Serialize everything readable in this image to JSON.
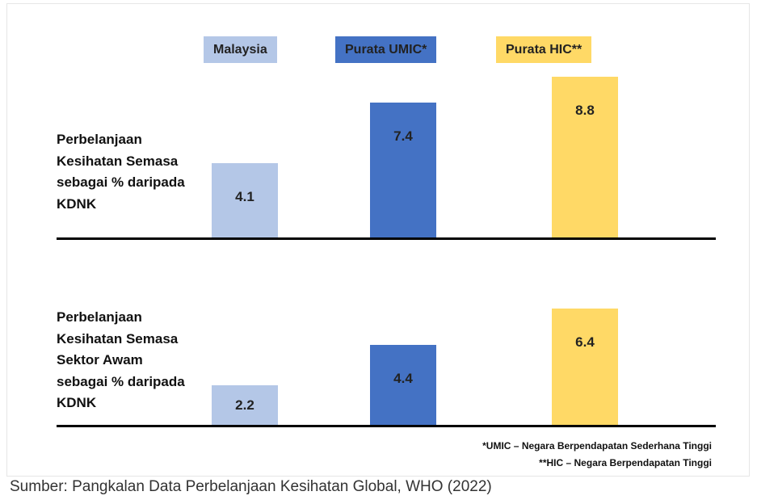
{
  "chart_data": {
    "type": "bar",
    "categories": [
      "Perbelanjaan Kesihatan Semasa sebagai % daripada KDNK",
      "Perbelanjaan Kesihatan Semasa Sektor Awam sebagai % daripada KDNK"
    ],
    "series": [
      {
        "name": "Malaysia",
        "color": "#b4c7e7",
        "values": [
          4.1,
          2.2
        ]
      },
      {
        "name": "Purata UMIC*",
        "color": "#4472c4",
        "values": [
          7.4,
          4.4
        ]
      },
      {
        "name": "Purata HIC**",
        "color": "#ffd966",
        "values": [
          8.8,
          6.4
        ]
      }
    ],
    "notes": [
      "*UMIC – Negara Berpendapatan Sederhana Tinggi",
      "**HIC – Negara Berpendapatan Tinggi"
    ],
    "source": "Sumber: Pangkalan Data Perbelanjaan Kesihatan Global, WHO (2022)"
  }
}
